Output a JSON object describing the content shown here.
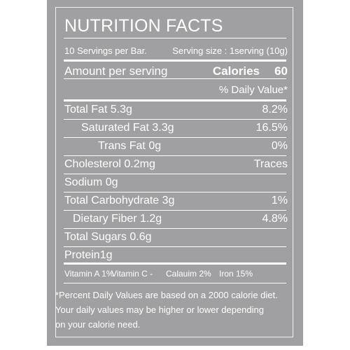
{
  "label": {
    "title": "NUTRITION FACTS",
    "servings": "10 Servings per Bar.",
    "serving_size": "Serving size : 1serving (10g)",
    "amount_label": "Amount per serving",
    "calories_label": "Calories",
    "calories_value": 60,
    "daily_value_header": "% Daily Value*",
    "nutrients": [
      {
        "name": "Total Fat 5.3g",
        "dv": "8.2%",
        "indent": 0
      },
      {
        "name": "Saturated Fat 3.3g",
        "dv": "16.5%",
        "indent": 2
      },
      {
        "name": "Trans  Fat 0g",
        "dv": "0%",
        "indent": 3
      },
      {
        "name": "Cholesterol 0.2mg",
        "dv": "Traces",
        "indent": 0
      },
      {
        "name": "Sodium 0g",
        "indent": 0
      },
      {
        "name": "Total Carbohydrate 3g",
        "dv": "1%",
        "indent": 0
      },
      {
        "name": "Dietary Fiber 1.2g",
        "dv": "4.8%",
        "indent": 1
      },
      {
        "name": "Total Sugars 0.6g",
        "indent": 0
      },
      {
        "name": "Protein1g",
        "indent": 0
      }
    ],
    "vitamins": [
      "Vitamin A 1%",
      "Vitamin C -",
      "Calauim 2%",
      "Iron 15%"
    ],
    "footnote": [
      "*Percent Daily Values are based on a 2000 calorie diet.",
      "Your daily values may be higher or lower depending",
      "on your calorie need."
    ]
  }
}
